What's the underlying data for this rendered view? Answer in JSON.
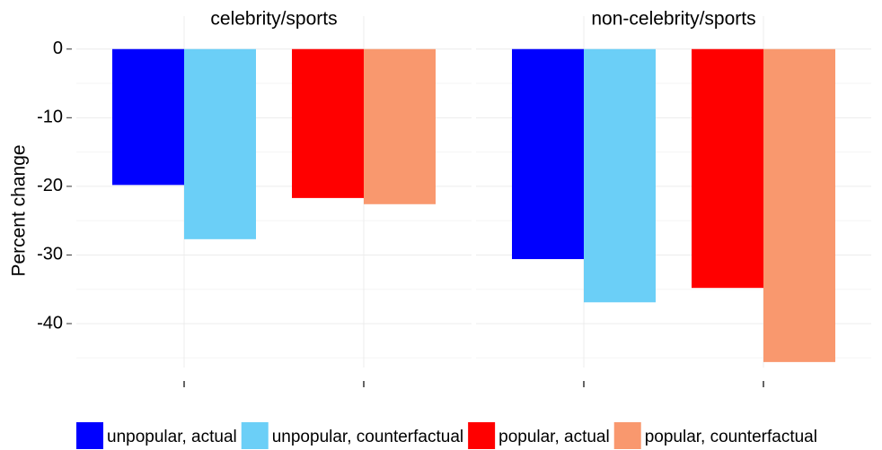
{
  "chart_data": {
    "type": "bar",
    "y_label": "Percent change",
    "ylim": [
      -46.4,
      4.8
    ],
    "yticks": [
      0,
      -10,
      -20,
      -30,
      -40
    ],
    "grid": true,
    "legend": "bottom",
    "series": [
      {
        "name": "unpopular, actual",
        "color": "#0000ff"
      },
      {
        "name": "unpopular, counterfactual",
        "color": "#6bcff7"
      },
      {
        "name": "popular, actual",
        "color": "#ff0000"
      },
      {
        "name": "popular, counterfactual",
        "color": "#f9986e"
      }
    ],
    "panels": [
      {
        "title": "celebrity/sports",
        "categories": [
          null,
          null
        ],
        "series": [
          {
            "values": [
              -19.8,
              null
            ]
          },
          {
            "values": [
              -27.7,
              null
            ]
          },
          {
            "values": [
              null,
              -21.7
            ]
          },
          {
            "values": [
              null,
              -22.6
            ]
          }
        ]
      },
      {
        "title": "non-celebrity/sports",
        "categories": [
          null,
          null
        ],
        "series": [
          {
            "values": [
              -30.6,
              null
            ]
          },
          {
            "values": [
              -36.9,
              null
            ]
          },
          {
            "values": [
              null,
              -34.8
            ]
          },
          {
            "values": [
              null,
              -45.6
            ]
          }
        ]
      }
    ]
  }
}
